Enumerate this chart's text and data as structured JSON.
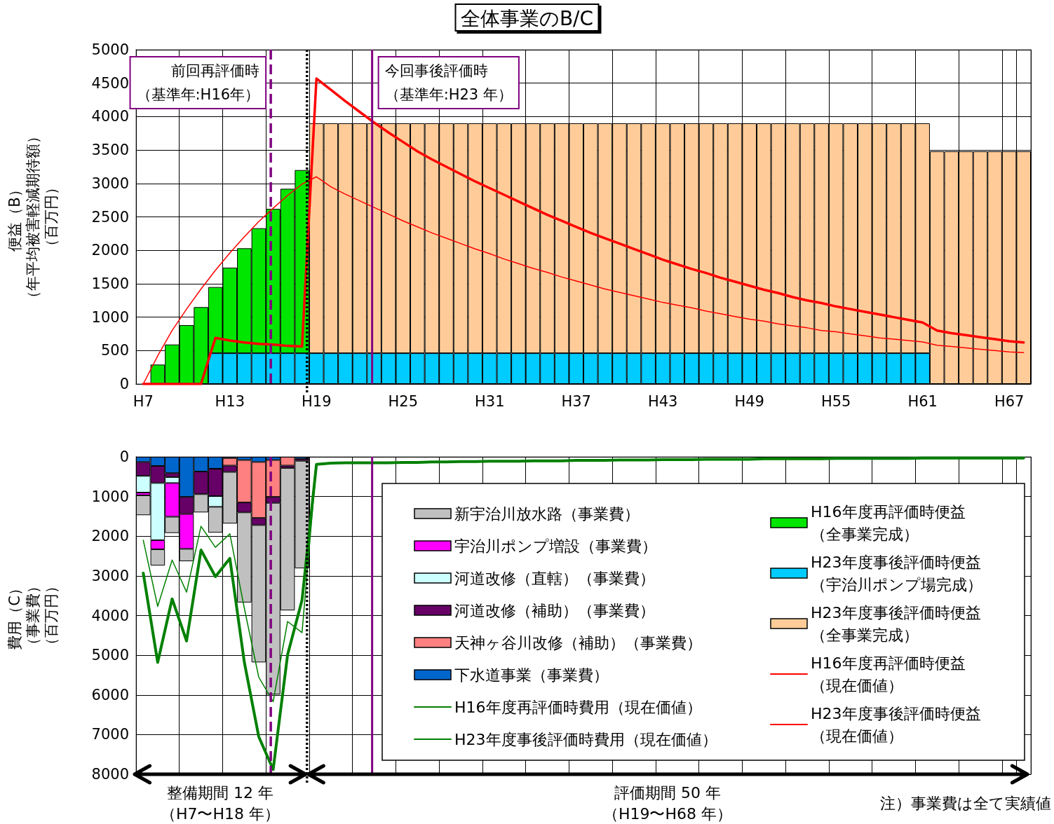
{
  "chart_data": [
    {
      "type": "bar",
      "title": "全体事業のB/C",
      "ylabel": "便益（B）（年平均被害軽減期待額）（百万円）",
      "categories": [
        "H7",
        null,
        null,
        null,
        null,
        null,
        "H13",
        null,
        null,
        null,
        null,
        null,
        "H19",
        null,
        null,
        null,
        null,
        null,
        "H25",
        null,
        null,
        null,
        null,
        null,
        "H31",
        null,
        null,
        null,
        null,
        null,
        "H37",
        null,
        null,
        null,
        null,
        null,
        "H43",
        null,
        null,
        null,
        null,
        null,
        "H49",
        null,
        null,
        null,
        null,
        null,
        "H55",
        null,
        null,
        null,
        null,
        null,
        "H61",
        null,
        null,
        null,
        null,
        null,
        "H67",
        null
      ],
      "ylim": [
        0,
        5000
      ],
      "yticks": [
        0,
        500,
        1000,
        1500,
        2000,
        2500,
        3000,
        3500,
        4000,
        4500,
        5000
      ],
      "grid": true,
      "legend": "bottom right",
      "marker": "none",
      "line_style": "solid",
      "series": [
        {
          "name": "H23年度事後評価時便益（宇治川ポンプ場完成）",
          "color": "#00ccff",
          "values": [
            null,
            null,
            null,
            null,
            null,
            460,
            460,
            460,
            460,
            460,
            460,
            460,
            460,
            460,
            460,
            460,
            460,
            460,
            460,
            460,
            460,
            460,
            460,
            460,
            460,
            460,
            460,
            460,
            460,
            460,
            460,
            460,
            460,
            460,
            460,
            460,
            460,
            460,
            460,
            460,
            460,
            460,
            460,
            460,
            460,
            460,
            460,
            460,
            460,
            460,
            460,
            460,
            460,
            460,
            460,
            null,
            null,
            null,
            null,
            null,
            null,
            null
          ]
        },
        {
          "name": "H16年度再評価時便益（全事業完成）",
          "color": "#00e600",
          "values": [
            null,
            290,
            590,
            880,
            1150,
            990,
            1280,
            1570,
            1870,
            2160,
            2460,
            2740,
            null,
            null,
            null,
            null,
            null,
            null,
            null,
            null,
            null,
            null,
            null,
            null,
            null,
            null,
            null,
            null,
            null,
            null,
            null,
            null,
            null,
            null,
            null,
            null,
            null,
            null,
            null,
            null,
            null,
            null,
            null,
            null,
            null,
            null,
            null,
            null,
            null,
            null,
            null,
            null,
            null,
            null,
            null,
            null,
            null,
            null,
            null,
            null,
            null,
            null
          ]
        },
        {
          "name": "H23年度事後評価時便益（全事業完成）",
          "color": "#ffcc99",
          "values": [
            null,
            null,
            null,
            null,
            null,
            null,
            null,
            null,
            null,
            null,
            null,
            null,
            3440,
            3440,
            3440,
            3440,
            3440,
            3440,
            3440,
            3440,
            3440,
            3440,
            3440,
            3440,
            3440,
            3440,
            3440,
            3440,
            3440,
            3440,
            3440,
            3440,
            3440,
            3440,
            3440,
            3440,
            3440,
            3440,
            3440,
            3440,
            3440,
            3440,
            3440,
            3440,
            3440,
            3440,
            3440,
            3440,
            3440,
            3440,
            3440,
            3440,
            3440,
            3440,
            3440,
            3480,
            3480,
            3480,
            3480,
            3480,
            3480,
            3480
          ]
        },
        {
          "name": "H16年度再評価時便益（現在価値）",
          "type": "line",
          "color": "#ff0000",
          "values": [
            0,
            420,
            800,
            1120,
            1420,
            1700,
            1960,
            2200,
            2430,
            2630,
            2820,
            2990,
            3100,
            2950,
            2840,
            2740,
            2640,
            2540,
            2440,
            2350,
            2260,
            2180,
            2100,
            2020,
            1950,
            1870,
            1800,
            1730,
            1670,
            1600,
            1540,
            1480,
            1420,
            1370,
            1320,
            1270,
            1220,
            1180,
            1140,
            1090,
            1050,
            1010,
            970,
            940,
            900,
            870,
            840,
            800,
            780,
            750,
            720,
            690,
            670,
            650,
            630,
            580,
            560,
            540,
            520,
            500,
            480,
            470
          ]
        },
        {
          "name": "H23年度事後評価時便益（現在価値）",
          "type": "line",
          "color": "#ff0000",
          "values": [
            0,
            0,
            0,
            0,
            0,
            690,
            650,
            620,
            600,
            590,
            570,
            560,
            4570,
            4400,
            4230,
            4070,
            3910,
            3760,
            3620,
            3480,
            3360,
            3250,
            3140,
            3030,
            2930,
            2830,
            2730,
            2630,
            2530,
            2440,
            2350,
            2260,
            2180,
            2100,
            2020,
            1940,
            1860,
            1790,
            1720,
            1660,
            1590,
            1530,
            1470,
            1410,
            1360,
            1300,
            1250,
            1210,
            1160,
            1120,
            1080,
            1040,
            1000,
            960,
            920,
            800,
            760,
            730,
            700,
            670,
            640,
            620
          ]
        }
      ],
      "stacked": true,
      "annotations": [
        "前回再評価時（基準年:H16年）",
        "今回事後評価時（基準年:H23 年）"
      ]
    },
    {
      "type": "bar",
      "ylabel": "費用（C）（事業費）（百万円）",
      "stacked": true,
      "categories": [
        null,
        null,
        null,
        null,
        null,
        null,
        null,
        null,
        null,
        null,
        null,
        null,
        null,
        null,
        null,
        null,
        null,
        null,
        null,
        null,
        null,
        null,
        null,
        null,
        null,
        null,
        null,
        null,
        null,
        null,
        null,
        null,
        null,
        null,
        null,
        null,
        null,
        null,
        null,
        null,
        null,
        null,
        null,
        null,
        null,
        null,
        null,
        null,
        null,
        null,
        null,
        null,
        null,
        null,
        null,
        null,
        null,
        null,
        null,
        null,
        null,
        null
      ],
      "ylim": [
        8000,
        0
      ],
      "yticks": [
        0,
        1000,
        2000,
        3000,
        4000,
        5000,
        6000,
        7000,
        8000
      ],
      "grid": true,
      "legend": "bottom right",
      "marker": "none",
      "line_style": "solid",
      "series": [
        {
          "name": "下水道事業（事業費）",
          "color": "#0066cc",
          "values": [
            130,
            230,
            410,
            1010,
            370,
            300,
            30,
            80,
            130,
            80,
            null,
            50,
            null,
            null,
            null,
            null,
            null,
            null,
            null,
            null,
            null,
            null,
            null,
            null,
            null,
            null,
            null,
            null,
            null,
            null,
            null,
            null,
            null,
            null,
            null,
            null,
            null,
            null,
            null,
            null,
            null,
            null,
            null,
            null,
            null,
            null,
            null,
            null,
            null,
            null,
            null,
            null,
            null,
            null,
            null,
            null,
            null,
            null,
            null,
            null,
            null,
            null
          ]
        },
        {
          "name": "天神ヶ谷川改修（補助）（事業費）",
          "color": "#ff8080",
          "values": [
            null,
            null,
            null,
            null,
            null,
            null,
            190,
            1070,
            1410,
            930,
            220,
            null,
            null,
            null,
            null,
            null,
            null,
            null,
            null,
            null,
            null,
            null,
            null,
            null,
            null,
            null,
            null,
            null,
            null,
            null,
            null,
            null,
            null,
            null,
            null,
            null,
            null,
            null,
            null,
            null,
            null,
            null,
            null,
            null,
            null,
            null,
            null,
            null,
            null,
            null,
            null,
            null,
            null,
            null,
            null,
            null,
            null,
            null,
            null,
            null,
            null,
            null
          ]
        },
        {
          "name": "河道改修（補助）（事業費）",
          "color": "#660066",
          "values": [
            350,
            430,
            100,
            430,
            570,
            690,
            160,
            250,
            180,
            150,
            60,
            50,
            null,
            null,
            null,
            null,
            null,
            null,
            null,
            null,
            null,
            null,
            null,
            null,
            null,
            null,
            null,
            null,
            null,
            null,
            null,
            null,
            null,
            null,
            null,
            null,
            null,
            null,
            null,
            null,
            null,
            null,
            null,
            null,
            null,
            null,
            null,
            null,
            null,
            null,
            null,
            null,
            null,
            null,
            null,
            null,
            null,
            null,
            null,
            null,
            null,
            null
          ]
        },
        {
          "name": "河道改修（直轄）（事業費）",
          "color": "#ccffff",
          "values": [
            420,
            1440,
            150,
            null,
            null,
            270,
            null,
            null,
            null,
            null,
            null,
            null,
            null,
            null,
            null,
            null,
            null,
            null,
            null,
            null,
            null,
            null,
            null,
            null,
            null,
            null,
            null,
            null,
            null,
            null,
            null,
            null,
            null,
            null,
            null,
            null,
            null,
            null,
            null,
            null,
            null,
            null,
            null,
            null,
            null,
            null,
            null,
            null,
            null,
            null,
            null,
            null,
            null,
            null,
            null,
            null,
            null,
            null,
            null,
            null,
            null,
            null
          ]
        },
        {
          "name": "宇治川ポンプ増設（事業費）",
          "color": "#ff00ff",
          "values": [
            70,
            230,
            850,
            880,
            null,
            null,
            null,
            null,
            null,
            null,
            null,
            null,
            null,
            null,
            null,
            null,
            null,
            null,
            null,
            null,
            null,
            null,
            null,
            null,
            null,
            null,
            null,
            null,
            null,
            null,
            null,
            null,
            null,
            null,
            null,
            null,
            null,
            null,
            null,
            null,
            null,
            null,
            null,
            null,
            null,
            null,
            null,
            null,
            null,
            null,
            null,
            null,
            null,
            null,
            null,
            null,
            null,
            null,
            null,
            null,
            null,
            null
          ]
        },
        {
          "name": "新宇治川放水路（事業費）",
          "color": "#c0c0c0",
          "values": [
            500,
            410,
            410,
            310,
            460,
            650,
            1300,
            2270,
            3460,
            4830,
            3590,
            2710,
            null,
            null,
            null,
            null,
            null,
            null,
            null,
            null,
            null,
            null,
            null,
            null,
            null,
            null,
            null,
            null,
            null,
            null,
            null,
            null,
            null,
            null,
            null,
            null,
            null,
            null,
            null,
            null,
            null,
            null,
            null,
            null,
            null,
            null,
            null,
            null,
            null,
            null,
            null,
            null,
            null,
            null,
            null,
            null,
            null,
            null,
            null,
            null,
            null,
            null
          ]
        },
        {
          "name": "H16年度再評価時費用（現在価値）",
          "type": "line",
          "color": "#008000",
          "values": [
            2100,
            3770,
            2600,
            3410,
            1750,
            2280,
            1940,
            3810,
            5550,
            6170,
            4150,
            4430,
            190,
            null,
            null,
            null,
            null,
            null,
            null,
            null,
            null,
            null,
            null,
            null,
            null,
            null,
            null,
            null,
            null,
            null,
            null,
            null,
            null,
            null,
            null,
            null,
            null,
            null,
            null,
            null,
            null,
            null,
            null,
            null,
            null,
            null,
            null,
            null,
            null,
            null,
            null,
            null,
            null,
            null,
            null,
            null,
            null,
            null,
            null,
            null,
            null,
            null
          ]
        },
        {
          "name": "H23年度事後評価時費用（現在価値）",
          "type": "line",
          "color": "#008000",
          "values": [
            2930,
            5180,
            3580,
            4640,
            2350,
            3020,
            2560,
            5170,
            7050,
            7880,
            4990,
            3610,
            190,
            160,
            150,
            150,
            150,
            150,
            140,
            140,
            130,
            130,
            120,
            120,
            110,
            110,
            110,
            100,
            100,
            100,
            90,
            90,
            90,
            80,
            80,
            80,
            70,
            70,
            70,
            60,
            60,
            60,
            60,
            50,
            50,
            50,
            50,
            50,
            40,
            40,
            40,
            40,
            40,
            40,
            30,
            30,
            30,
            30,
            30,
            30,
            30,
            30
          ]
        }
      ],
      "annotations": [
        "整備期間 12 年（H7〜H18 年）",
        "評価期間 50 年（H19〜H68 年）",
        "注）事業費は全て実績値"
      ]
    }
  ]
}
